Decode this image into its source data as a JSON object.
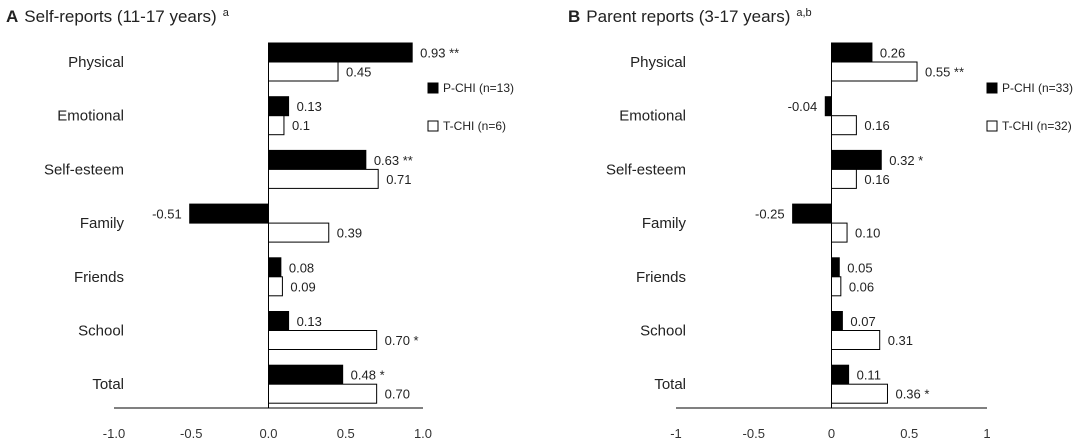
{
  "chart_data": [
    {
      "type": "bar",
      "orientation": "horizontal",
      "panel_letter": "A",
      "title": "Self-reports (11-17 years)",
      "title_superscript": "a",
      "categories": [
        "Physical",
        "Emotional",
        "Self-esteem",
        "Family",
        "Friends",
        "School",
        "Total"
      ],
      "series": [
        {
          "name": "P-CHI (n=13)",
          "color": "#000000",
          "values": [
            0.93,
            0.13,
            0.63,
            -0.51,
            0.08,
            0.13,
            0.48
          ],
          "labels": [
            "0.93 **",
            "0.13",
            "0.63 **",
            "-0.51",
            "0.08",
            "0.13",
            "0.48 *"
          ]
        },
        {
          "name": "T-CHI (n=6)",
          "color": "#ffffff",
          "values": [
            0.45,
            0.1,
            0.71,
            0.39,
            0.09,
            0.7,
            0.7
          ],
          "labels": [
            "0.45",
            "0.1",
            "0.71",
            "0.39",
            "0.09",
            "0.70 *",
            "0.70"
          ]
        }
      ],
      "xlim": [
        -1.0,
        1.0
      ],
      "xticks": [
        -1.0,
        -0.5,
        0.0,
        0.5,
        1.0
      ],
      "xtick_labels": [
        "-1.0",
        "-0.5",
        "0.0",
        "0.5",
        "1.0"
      ],
      "xlabel": "",
      "ylabel": "",
      "legend_position": "right"
    },
    {
      "type": "bar",
      "orientation": "horizontal",
      "panel_letter": "B",
      "title": "Parent  reports (3-17 years)",
      "title_superscript": "a,b",
      "categories": [
        "Physical",
        "Emotional",
        "Self-esteem",
        "Family",
        "Friends",
        "School",
        "Total"
      ],
      "series": [
        {
          "name": "P-CHI (n=33)",
          "color": "#000000",
          "values": [
            0.26,
            -0.04,
            0.32,
            -0.25,
            0.05,
            0.07,
            0.11
          ],
          "labels": [
            "0.26",
            "-0.04",
            "0.32 *",
            "-0.25",
            "0.05",
            "0.07",
            "0.11"
          ]
        },
        {
          "name": "T-CHI (n=32)",
          "color": "#ffffff",
          "values": [
            0.55,
            0.16,
            0.16,
            0.1,
            0.06,
            0.31,
            0.36
          ],
          "labels": [
            "0.55 **",
            "0.16",
            "0.16",
            "0.10",
            "0.06",
            "0.31",
            "0.36 *"
          ]
        }
      ],
      "xlim": [
        -1,
        1
      ],
      "xticks": [
        -1,
        -0.5,
        0,
        0.5,
        1
      ],
      "xtick_labels": [
        "-1",
        "-0.5",
        "0",
        "0.5",
        "1"
      ],
      "xlabel": "",
      "ylabel": "",
      "legend_position": "right"
    }
  ]
}
